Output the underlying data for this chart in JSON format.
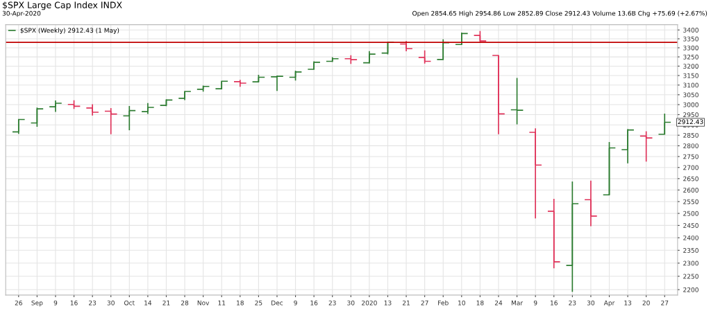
{
  "chart_data": {
    "type": "candlestick",
    "title": "$SPX Large Cap Index INDX",
    "subtitle": "30-Apr-2020",
    "annotations": [
      "Open 2854.65 High 2954.86 Low 2852.89 Close 2912.43 Volume 13.6B Chg +75.69 (+2.67%)",
      "2912.43"
    ],
    "categories": [
      "26",
      "Sep",
      "9",
      "16",
      "23",
      "30",
      "Oct",
      "14",
      "21",
      "28",
      "Nov",
      "11",
      "18",
      "25",
      "Dec",
      "9",
      "16",
      "23",
      "30",
      "2020",
      "13",
      "21",
      "27",
      "Feb",
      "10",
      "18",
      "24",
      "Mar",
      "9",
      "16",
      "23",
      "30",
      "Apr",
      "13",
      "20",
      "27"
    ],
    "series": [
      {
        "name": "$SPX (Weekly) 2912.43 (1 May)",
        "color": "#2e7d32",
        "ohlc": [
          [
            2866,
            2928,
            2856,
            2926
          ],
          [
            2909,
            2985,
            2891,
            2979
          ],
          [
            2989,
            3021,
            2964,
            3007
          ],
          [
            3001,
            3022,
            2978,
            2992
          ],
          [
            2983,
            3002,
            2946,
            2962
          ],
          [
            2967,
            2983,
            2855,
            2953
          ],
          [
            2944,
            2993,
            2874,
            2970
          ],
          [
            2965,
            3008,
            2953,
            2986
          ],
          [
            2996,
            3027,
            2992,
            3023
          ],
          [
            3032,
            3067,
            3023,
            3067
          ],
          [
            3078,
            3097,
            3066,
            3093
          ],
          [
            3081,
            3121,
            3078,
            3120
          ],
          [
            3118,
            3127,
            3091,
            3110
          ],
          [
            3117,
            3154,
            3115,
            3141
          ],
          [
            3143,
            3150,
            3070,
            3146
          ],
          [
            3141,
            3176,
            3124,
            3169
          ],
          [
            3183,
            3226,
            3183,
            3221
          ],
          [
            3226,
            3248,
            3222,
            3240
          ],
          [
            3240,
            3259,
            3212,
            3235
          ],
          [
            3218,
            3282,
            3214,
            3265
          ],
          [
            3271,
            3330,
            3264,
            3330
          ],
          [
            3321,
            3337,
            3281,
            3295
          ],
          [
            3247,
            3285,
            3214,
            3226
          ],
          [
            3236,
            3347,
            3236,
            3328
          ],
          [
            3318,
            3385,
            3315,
            3380
          ],
          [
            3369,
            3394,
            3328,
            3338
          ],
          [
            3258,
            3260,
            2855,
            2954
          ],
          [
            2974,
            3137,
            2902,
            2972
          ],
          [
            2864,
            2883,
            2479,
            2711
          ],
          [
            2509,
            2562,
            2280,
            2305
          ],
          [
            2291,
            2637,
            2192,
            2541
          ],
          [
            2558,
            2641,
            2447,
            2489
          ],
          [
            2579,
            2818,
            2579,
            2790
          ],
          [
            2782,
            2880,
            2719,
            2875
          ],
          [
            2846,
            2869,
            2727,
            2837
          ],
          [
            2854.65,
            2954.86,
            2852.89,
            2912.43
          ]
        ],
        "colors": [
          "#2e7d32",
          "#2e7d32",
          "#2e7d32",
          "#e0335a",
          "#e0335a",
          "#e0335a",
          "#2e7d32",
          "#2e7d32",
          "#2e7d32",
          "#2e7d32",
          "#2e7d32",
          "#2e7d32",
          "#e0335a",
          "#2e7d32",
          "#2e7d32",
          "#2e7d32",
          "#2e7d32",
          "#2e7d32",
          "#e0335a",
          "#2e7d32",
          "#2e7d32",
          "#e0335a",
          "#e0335a",
          "#2e7d32",
          "#2e7d32",
          "#e0335a",
          "#e0335a",
          "#2e7d32",
          "#e0335a",
          "#e0335a",
          "#2e7d32",
          "#e0335a",
          "#2e7d32",
          "#2e7d32",
          "#e0335a",
          "#2e7d32"
        ]
      }
    ],
    "log": true,
    "ylim": [
      2180,
      3430
    ],
    "yticks": [
      2200,
      2250,
      2300,
      2350,
      2400,
      2450,
      2500,
      2550,
      2600,
      2650,
      2700,
      2750,
      2800,
      2850,
      2900,
      2950,
      3000,
      3050,
      3100,
      3150,
      3200,
      3250,
      3300,
      3350,
      3400
    ],
    "ref_lines": [
      {
        "axis": "y",
        "value": 3330,
        "color": "#c00000"
      }
    ],
    "grid": true,
    "legend": "top left"
  }
}
